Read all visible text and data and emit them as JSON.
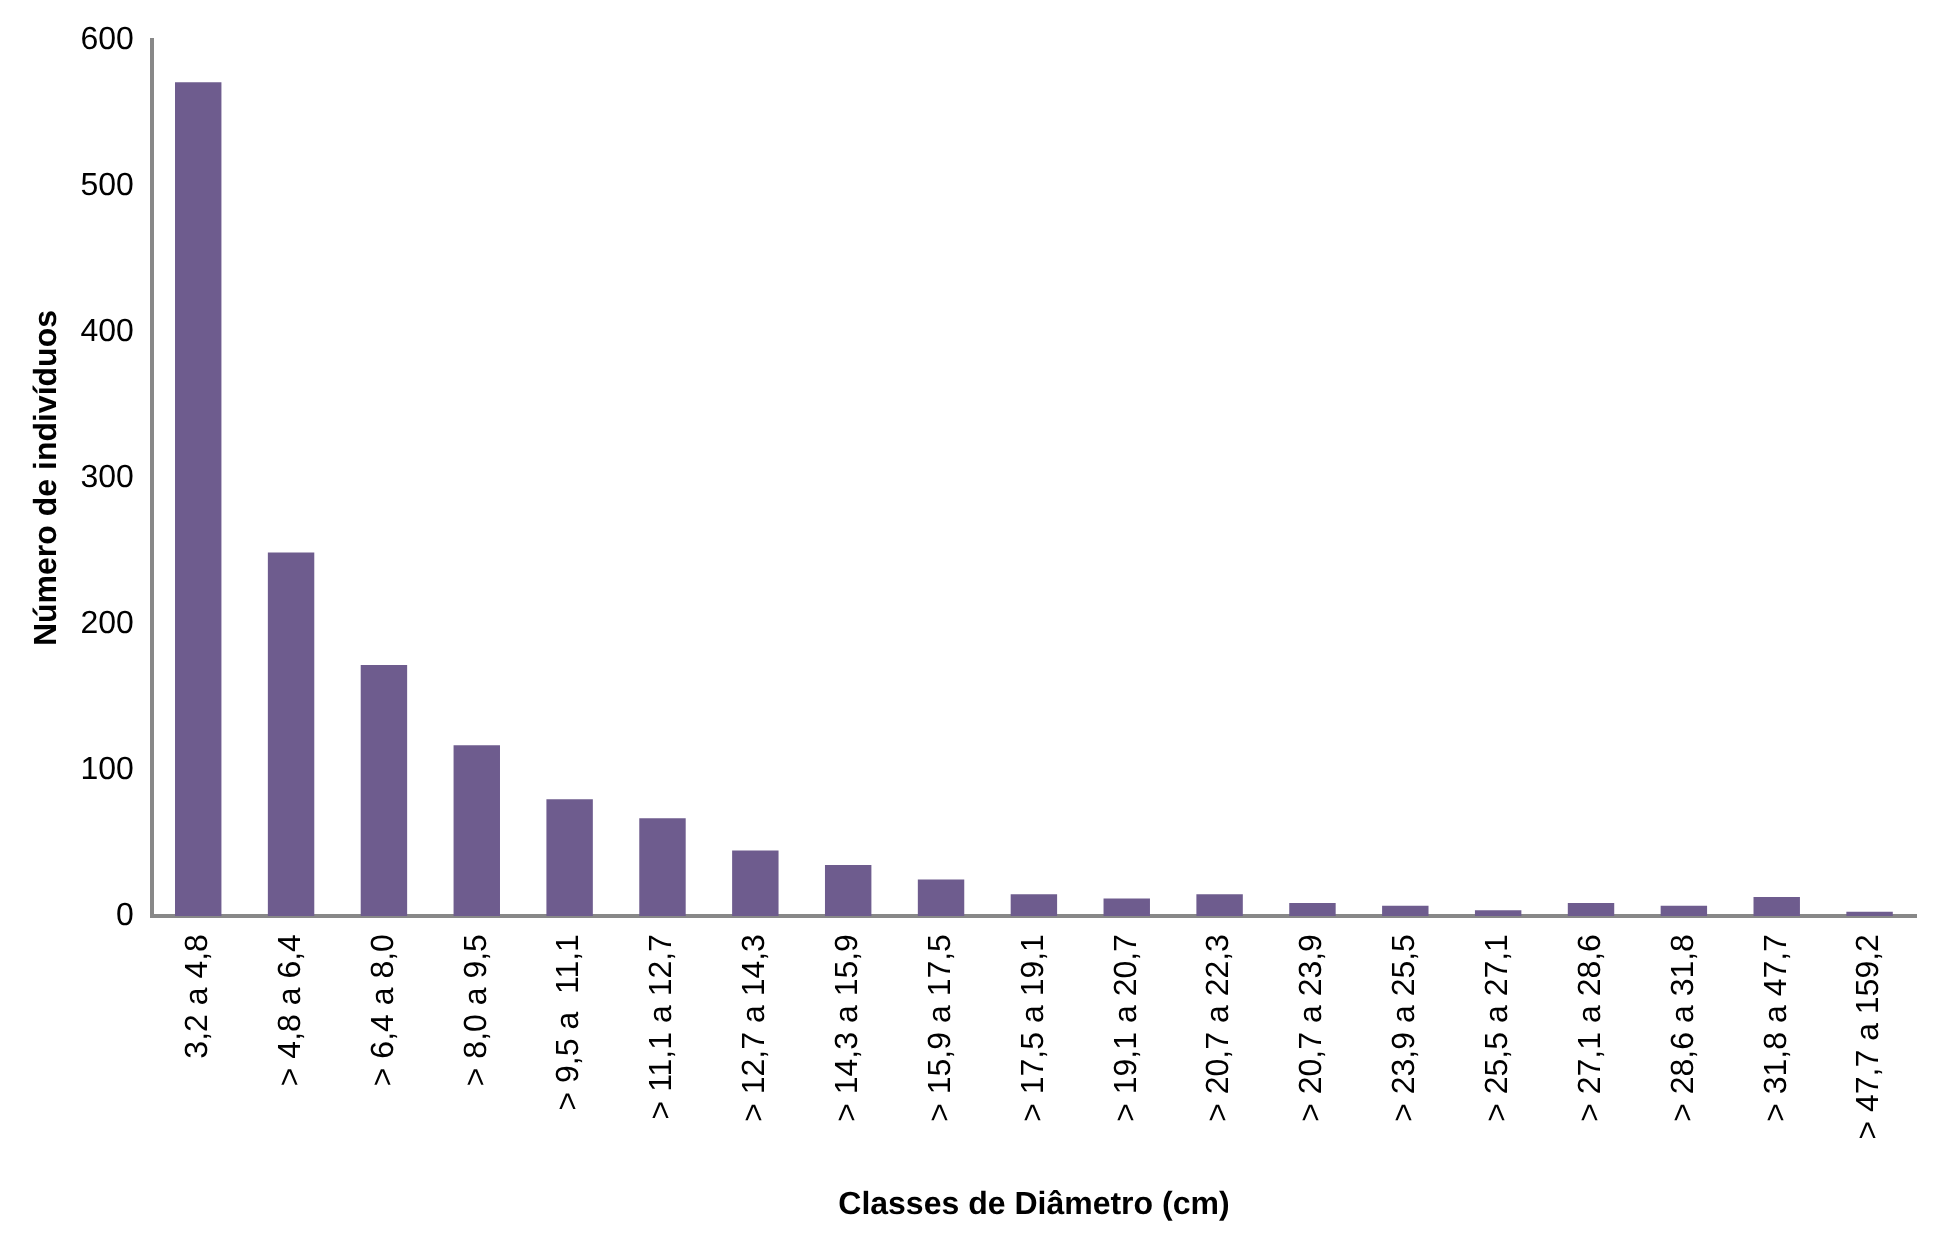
{
  "chart_data": {
    "type": "bar",
    "xlabel": "Classes de Diâmetro (cm)",
    "ylabel": "Número de indivíduos",
    "categories": [
      "3,2 a 4,8",
      "> 4,8 a 6,4",
      "> 6,4 a 8,0",
      "> 8,0 a 9,5",
      "> 9,5 a  11,1",
      "> 11,1 a 12,7",
      "> 12,7 a 14,3",
      "> 14,3 a 15,9",
      "> 15,9 a 17,5",
      "> 17,5 a 19,1",
      "> 19,1 a 20,7",
      "> 20,7 a 22,3",
      "> 20,7 a 23,9",
      "> 23,9 a 25,5",
      "> 25,5 a 27,1",
      "> 27,1 a 28,6",
      "> 28,6 a 31,8",
      "> 31,8 a 47,7",
      "> 47,7 a 159,2"
    ],
    "values": [
      571,
      249,
      172,
      117,
      80,
      67,
      45,
      35,
      25,
      15,
      12,
      15,
      9,
      7,
      4,
      9,
      7,
      13,
      3
    ],
    "color": "#6e5c8e",
    "ylim": [
      0,
      600
    ],
    "yticks": [
      0,
      100,
      200,
      300,
      400,
      500,
      600
    ],
    "grid": false,
    "legend": false
  }
}
